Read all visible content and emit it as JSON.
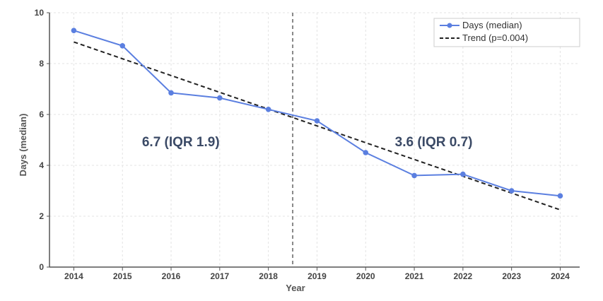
{
  "chart_data": {
    "type": "line",
    "x": [
      2014,
      2015,
      2016,
      2017,
      2018,
      2019,
      2020,
      2021,
      2022,
      2023,
      2024
    ],
    "series": [
      {
        "name": "Days (median)",
        "color": "#5b7fe0",
        "values": [
          9.3,
          8.7,
          6.85,
          6.65,
          6.2,
          5.75,
          4.5,
          3.6,
          3.65,
          3.0,
          2.8
        ]
      }
    ],
    "trend": {
      "name": "Trend (p=0.004)",
      "color": "#222222",
      "start": [
        2014,
        8.85
      ],
      "end": [
        2024,
        2.25
      ]
    },
    "xlabel": "Year",
    "ylabel": "Days (median)",
    "xticks": [
      "2014",
      "2015",
      "2016",
      "2017",
      "2018",
      "2019",
      "2020",
      "2021",
      "2022",
      "2023",
      "2024"
    ],
    "yticks": [
      "0",
      "2",
      "4",
      "6",
      "8",
      "10"
    ],
    "ylim": [
      0,
      10
    ],
    "xlim": [
      2013.5,
      2024.4
    ],
    "divider_x": 2018.5,
    "annotations": [
      {
        "text": "6.7 (IQR 1.9)",
        "x": 2016.2,
        "y": 4.75
      },
      {
        "text": "3.6 (IQR 0.7)",
        "x": 2021.4,
        "y": 4.75
      }
    ],
    "grid": true,
    "legend_position": "top-right"
  }
}
